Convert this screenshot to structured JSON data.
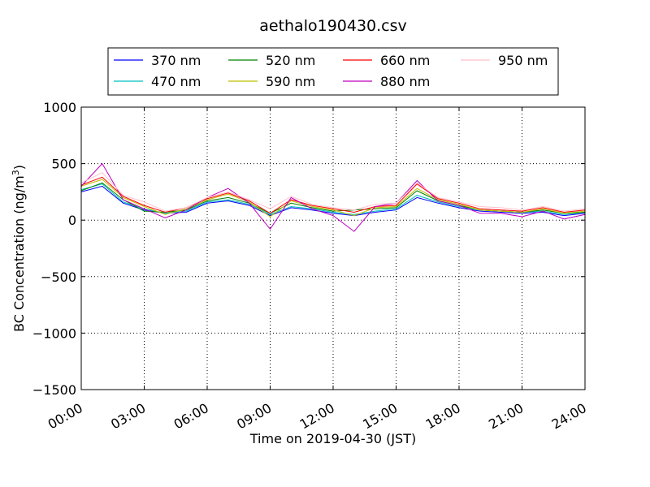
{
  "chart_data": {
    "type": "line",
    "title": "aethalo190430.csv",
    "xlabel": "Time on 2019-04-30 (JST)",
    "ylabel_main": "BC Concentration (ng/m",
    "ylabel_sup": "3",
    "ylabel_close": ")",
    "x_unit": "hours",
    "xlim": [
      0,
      24
    ],
    "ylim": [
      -1500,
      1000
    ],
    "grid": true,
    "legend_position": "top-center",
    "x_ticks": [
      {
        "value": 0,
        "label": "00:00"
      },
      {
        "value": 3,
        "label": "03:00"
      },
      {
        "value": 6,
        "label": "06:00"
      },
      {
        "value": 9,
        "label": "09:00"
      },
      {
        "value": 12,
        "label": "12:00"
      },
      {
        "value": 15,
        "label": "15:00"
      },
      {
        "value": 18,
        "label": "18:00"
      },
      {
        "value": 21,
        "label": "21:00"
      },
      {
        "value": 24,
        "label": "24:00"
      }
    ],
    "y_ticks": [
      {
        "value": 1000,
        "label": "1000"
      },
      {
        "value": 500,
        "label": "500"
      },
      {
        "value": 0,
        "label": "0"
      },
      {
        "value": -500,
        "label": "−500"
      },
      {
        "value": -1000,
        "label": "−1000"
      },
      {
        "value": -1500,
        "label": "−1500"
      }
    ],
    "series": [
      {
        "name": "370 nm",
        "color": "#0000ff",
        "x": [
          0,
          1,
          2,
          3,
          4,
          5,
          6,
          7,
          8,
          9,
          10,
          11,
          12,
          13,
          14,
          15,
          16,
          17,
          18,
          19,
          20,
          21,
          22,
          23,
          24
        ],
        "values": [
          250,
          300,
          150,
          90,
          60,
          70,
          150,
          170,
          130,
          40,
          110,
          90,
          60,
          40,
          70,
          90,
          200,
          150,
          110,
          80,
          70,
          60,
          70,
          40,
          60
        ]
      },
      {
        "name": "470 nm",
        "color": "#00bfbf",
        "x": [
          0,
          1,
          2,
          3,
          4,
          5,
          6,
          7,
          8,
          9,
          10,
          11,
          12,
          13,
          14,
          15,
          16,
          17,
          18,
          19,
          20,
          21,
          22,
          23,
          24
        ],
        "values": [
          270,
          320,
          160,
          100,
          60,
          80,
          160,
          180,
          140,
          50,
          120,
          100,
          70,
          50,
          80,
          100,
          220,
          160,
          120,
          90,
          80,
          70,
          80,
          50,
          70
        ]
      },
      {
        "name": "520 nm",
        "color": "#008000",
        "x": [
          0,
          1,
          2,
          3,
          4,
          5,
          6,
          7,
          8,
          9,
          10,
          11,
          12,
          13,
          14,
          15,
          16,
          17,
          18,
          19,
          20,
          21,
          22,
          23,
          24
        ],
        "values": [
          260,
          330,
          180,
          80,
          70,
          90,
          170,
          200,
          150,
          60,
          150,
          110,
          80,
          90,
          100,
          110,
          260,
          170,
          130,
          90,
          80,
          70,
          90,
          60,
          70
        ]
      },
      {
        "name": "590 nm",
        "color": "#bfbf00",
        "x": [
          0,
          1,
          2,
          3,
          4,
          5,
          6,
          7,
          8,
          9,
          10,
          11,
          12,
          13,
          14,
          15,
          16,
          17,
          18,
          19,
          20,
          21,
          22,
          23,
          24
        ],
        "values": [
          300,
          360,
          200,
          120,
          50,
          100,
          180,
          230,
          160,
          30,
          170,
          120,
          90,
          40,
          110,
          120,
          280,
          180,
          140,
          90,
          80,
          70,
          100,
          60,
          80
        ]
      },
      {
        "name": "660 nm",
        "color": "#ff0000",
        "x": [
          0,
          1,
          2,
          3,
          4,
          5,
          6,
          7,
          8,
          9,
          10,
          11,
          12,
          13,
          14,
          15,
          16,
          17,
          18,
          19,
          20,
          21,
          22,
          23,
          24
        ],
        "values": [
          310,
          380,
          210,
          130,
          70,
          110,
          190,
          240,
          170,
          60,
          180,
          130,
          100,
          70,
          120,
          130,
          320,
          190,
          150,
          100,
          90,
          80,
          110,
          70,
          90
        ]
      },
      {
        "name": "880 nm",
        "color": "#bf00bf",
        "x": [
          0,
          1,
          2,
          3,
          4,
          5,
          6,
          7,
          8,
          9,
          10,
          11,
          12,
          13,
          14,
          15,
          16,
          17,
          18,
          19,
          20,
          21,
          22,
          23,
          24
        ],
        "values": [
          300,
          500,
          180,
          100,
          20,
          90,
          200,
          280,
          150,
          -80,
          200,
          100,
          40,
          -100,
          120,
          150,
          350,
          170,
          130,
          60,
          60,
          30,
          80,
          10,
          50
        ]
      },
      {
        "name": "950 nm",
        "color": "#ffc0cb",
        "x": [
          0,
          1,
          2,
          3,
          4,
          5,
          6,
          7,
          8,
          9,
          10,
          11,
          12,
          13,
          14,
          15,
          16,
          17,
          18,
          19,
          20,
          21,
          22,
          23,
          24
        ],
        "values": [
          330,
          420,
          220,
          160,
          80,
          110,
          200,
          250,
          180,
          100,
          210,
          140,
          110,
          90,
          140,
          150,
          330,
          200,
          160,
          120,
          110,
          90,
          120,
          80,
          100
        ]
      }
    ]
  }
}
